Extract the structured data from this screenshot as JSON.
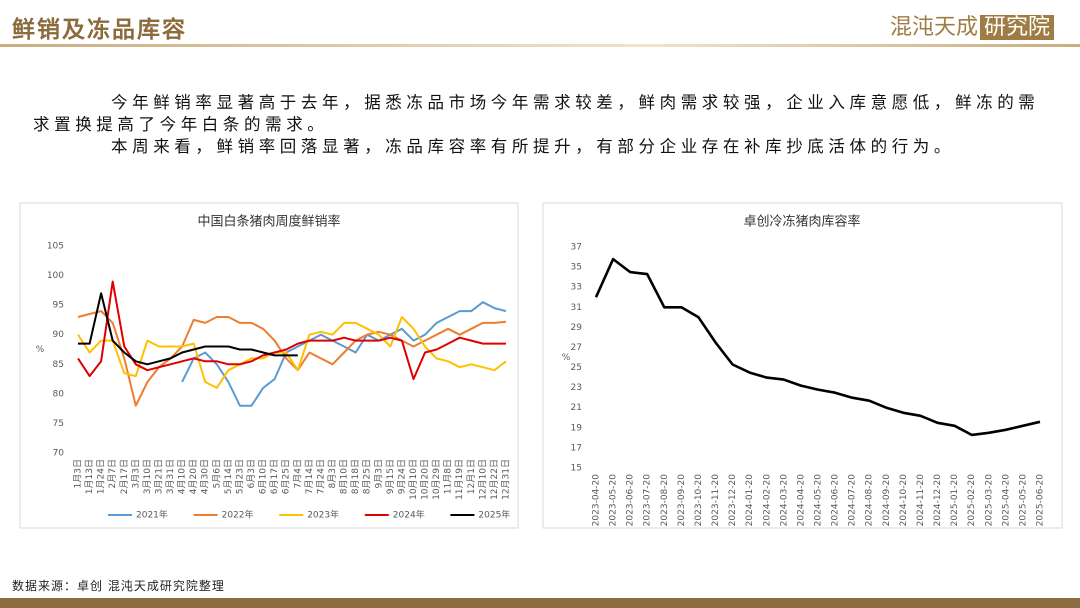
{
  "header": {
    "title": "鲜销及冻品库容",
    "logo": "混沌天成",
    "logo_box": "研究院"
  },
  "paragraphs": [
    "今年鲜销率显著高于去年，据悉冻品市场今年需求较差，鲜肉需求较强，企业入库意愿低，鲜冻的需求置换提高了今年白条的需求。",
    "本周来看，鲜销率回落显著，冻品库容率有所提升，有部分企业存在补库抄底活体的行为。"
  ],
  "source": "数据来源：卓创 混沌天成研究院整理",
  "chart_data": [
    {
      "type": "line",
      "title": "中国白条猪肉周度鲜销率",
      "y_label": "%",
      "categories": [
        "1月3日",
        "1月13日",
        "1月24日",
        "2月7日",
        "2月17日",
        "3月3日",
        "3月10日",
        "3月21日",
        "3月31日",
        "4月10日",
        "4月20日",
        "4月30日",
        "5月6日",
        "5月14日",
        "5月23日",
        "6月3日",
        "6月10日",
        "6月17日",
        "6月25日",
        "7月4日",
        "7月14日",
        "7月24日",
        "8月3日",
        "8月10日",
        "8月18日",
        "8月25日",
        "9月3日",
        "9月15日",
        "9月24日",
        "10月10日",
        "10月20日",
        "10月29日",
        "11月8日",
        "11月19日",
        "12月1日",
        "12月10日",
        "12月22日",
        "12月31日"
      ],
      "ylim": [
        70,
        105
      ],
      "yticks": [
        70,
        75,
        80,
        85,
        90,
        95,
        100,
        105
      ],
      "legend": "bottom",
      "series": [
        {
          "name": "2021年",
          "color": "#5b9bd5",
          "values": [
            null,
            null,
            null,
            null,
            null,
            null,
            null,
            null,
            null,
            82,
            86,
            87,
            85,
            82,
            78,
            78,
            81,
            82.5,
            87,
            88,
            89,
            90,
            89,
            88,
            87,
            90,
            89,
            90,
            91,
            89,
            90,
            92,
            93,
            94,
            94,
            95.5,
            94.5,
            94
          ]
        },
        {
          "name": "2022年",
          "color": "#ed7d31",
          "values": [
            93,
            93.5,
            94,
            92,
            86,
            78,
            82,
            84.5,
            86,
            88,
            92.5,
            92,
            93,
            93,
            92,
            92,
            91,
            89,
            86,
            84,
            87,
            86,
            85,
            87,
            89,
            90,
            90.5,
            90,
            89,
            88,
            89,
            90,
            91,
            90,
            91,
            92,
            92,
            92.2
          ]
        },
        {
          "name": "2023年",
          "color": "#ffc000",
          "values": [
            90,
            87,
            89,
            89,
            83.5,
            83,
            89,
            88,
            88,
            88,
            88.5,
            82,
            81,
            84,
            85,
            86,
            86,
            87,
            87,
            84,
            90,
            90.5,
            90,
            92,
            92,
            91,
            90,
            88,
            93,
            91,
            88,
            86,
            85.5,
            84.5,
            85,
            84.5,
            84,
            85.5
          ]
        },
        {
          "name": "2024年",
          "color": "#e00000",
          "values": [
            86,
            83,
            85.5,
            99,
            88,
            85,
            84,
            84.5,
            85,
            85.5,
            86,
            85.5,
            85.5,
            85,
            85,
            85.5,
            86.5,
            87,
            87.5,
            88.5,
            89,
            89,
            89,
            89.5,
            89,
            89,
            89,
            89.5,
            89,
            82.5,
            87,
            87.5,
            88.5,
            89.5,
            89,
            88.5,
            88.5,
            88.5
          ]
        },
        {
          "name": "2025年",
          "color": "#000000",
          "values": [
            88.5,
            88.5,
            97,
            89,
            87,
            85.5,
            85,
            85.5,
            86,
            87,
            87.5,
            88,
            88,
            88,
            87.5,
            87.5,
            87,
            86.5,
            86.5,
            86.5,
            null,
            null,
            null,
            null,
            null,
            null,
            null,
            null,
            null,
            null,
            null,
            null,
            null,
            null,
            null,
            null,
            null,
            null
          ]
        }
      ]
    },
    {
      "type": "line",
      "title": "卓创冷冻猪肉库容率",
      "y_label": "%",
      "categories": [
        "2023-04-20",
        "2023-05-20",
        "2023-06-20",
        "2023-07-20",
        "2023-08-20",
        "2023-09-20",
        "2023-10-20",
        "2023-11-20",
        "2023-12-20",
        "2024-01-20",
        "2024-02-20",
        "2024-03-20",
        "2024-04-20",
        "2024-05-20",
        "2024-06-20",
        "2024-07-20",
        "2024-08-20",
        "2024-09-20",
        "2024-10-20",
        "2024-11-20",
        "2024-12-20",
        "2025-01-20",
        "2025-02-20",
        "2025-03-20",
        "2025-04-20",
        "2025-05-20",
        "2025-06-20"
      ],
      "values": [
        32,
        35.8,
        34.5,
        34.3,
        31,
        31,
        30,
        27.5,
        25.3,
        24.5,
        24,
        23.8,
        23.2,
        22.8,
        22.5,
        22,
        21.7,
        21,
        20.5,
        20.2,
        19.5,
        19.2,
        18.3,
        18.5,
        18.8,
        19.2,
        19.6
      ],
      "color": "#000000",
      "ylim": [
        15,
        37
      ],
      "yticks": [
        15,
        17,
        19,
        21,
        23,
        25,
        27,
        29,
        31,
        33,
        35,
        37
      ]
    }
  ]
}
